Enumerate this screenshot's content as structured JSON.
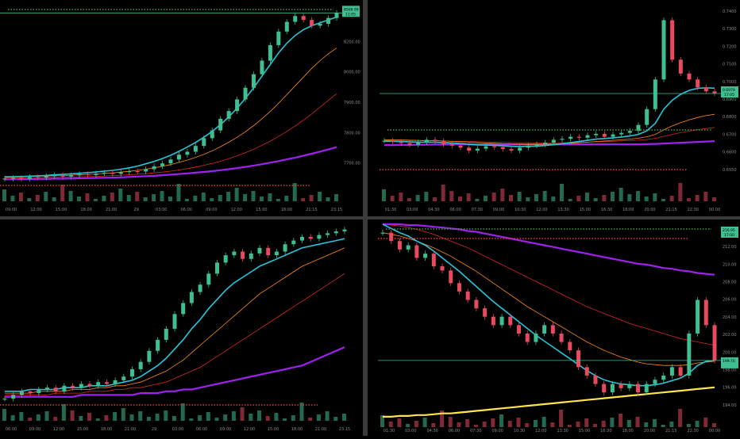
{
  "chart_data": [
    {
      "type": "candlestick",
      "panel": "top-left",
      "price_axis": [
        "8400.00",
        "8200.00",
        "8000.00",
        "7900.00",
        "7800.00",
        "7700.00"
      ],
      "price_tag": "8566.99",
      "price_tag_sub": "11:05",
      "time_axis": [
        "09:00",
        "12:00",
        "15:00",
        "18:00",
        "21:00",
        "29",
        "03:00",
        "06:00",
        "09:00",
        "12:00",
        "15:00",
        "18:00",
        "21:15",
        "23:15"
      ],
      "ylim": [
        7660,
        8600
      ],
      "trend_close": [
        7712,
        7715,
        7710,
        7720,
        7716,
        7724,
        7730,
        7722,
        7728,
        7735,
        7730,
        7738,
        7742,
        7736,
        7745,
        7750,
        7748,
        7760,
        7775,
        7790,
        7810,
        7835,
        7850,
        7880,
        7920,
        7960,
        8020,
        8060,
        8120,
        8180,
        8250,
        8320,
        8400,
        8470,
        8520,
        8550,
        8530,
        8500,
        8510,
        8540,
        8566
      ],
      "ma_fast": [
        7720,
        7721,
        7722,
        7724,
        7726,
        7728,
        7731,
        7733,
        7736,
        7739,
        7742,
        7746,
        7750,
        7754,
        7760,
        7767,
        7776,
        7788,
        7800,
        7815,
        7832,
        7852,
        7874,
        7898,
        7925,
        7955,
        7990,
        8030,
        8075,
        8125,
        8180,
        8240,
        8300,
        8360,
        8410,
        8450,
        8480,
        8500,
        8515,
        8530,
        8545
      ],
      "ma_mid": [
        7722,
        7722,
        7722,
        7723,
        7724,
        7725,
        7726,
        7727,
        7729,
        7731,
        7733,
        7735,
        7738,
        7741,
        7745,
        7749,
        7754,
        7760,
        7767,
        7775,
        7784,
        7795,
        7807,
        7821,
        7837,
        7855,
        7876,
        7899,
        7925,
        7953,
        7985,
        8020,
        8058,
        8100,
        8145,
        8190,
        8235,
        8280,
        8320,
        8355,
        8385
      ],
      "ma_slow": [
        7716,
        7716,
        7716,
        7717,
        7717,
        7718,
        7718,
        7719,
        7720,
        7721,
        7722,
        7723,
        7725,
        7727,
        7729,
        7731,
        7734,
        7737,
        7741,
        7745,
        7750,
        7756,
        7763,
        7771,
        7780,
        7790,
        7801,
        7814,
        7829,
        7845,
        7863,
        7883,
        7905,
        7929,
        7955,
        7983,
        8013,
        8045,
        8080,
        8115,
        8150
      ],
      "ma_long": [
        7708,
        7708,
        7709,
        7709,
        7710,
        7710,
        7711,
        7711,
        7712,
        7713,
        7714,
        7715,
        7716,
        7717,
        7718,
        7720,
        7722,
        7724,
        7726,
        7729,
        7732,
        7735,
        7738,
        7742,
        7746,
        7750,
        7755,
        7760,
        7766,
        7772,
        7779,
        7786,
        7794,
        7802,
        7811,
        7820,
        7830,
        7840,
        7851,
        7862,
        7874
      ]
    },
    {
      "type": "candlestick",
      "panel": "top-right",
      "price_axis": [
        "0.7400",
        "0.7300",
        "0.7200",
        "0.7100",
        "0.7000",
        "0.6900",
        "0.6800",
        "0.6700",
        "0.6600",
        "0.6550"
      ],
      "price_tag": "0.6979",
      "price_tag_sub": "17:05",
      "time_axis": [
        "01:30",
        "03:00",
        "04:30",
        "06:00",
        "07:30",
        "09:00",
        "10:30",
        "12:00",
        "13:30",
        "15:00",
        "16:30",
        "18:00",
        "20:00",
        "21:15",
        "22:30",
        "00:00"
      ],
      "ylim": [
        0.653,
        0.742
      ],
      "trend_close": [
        0.674,
        0.6735,
        0.6728,
        0.672,
        0.6732,
        0.6745,
        0.6738,
        0.6722,
        0.6715,
        0.6705,
        0.669,
        0.67,
        0.6712,
        0.6708,
        0.6698,
        0.669,
        0.6705,
        0.6715,
        0.6722,
        0.673,
        0.6745,
        0.675,
        0.676,
        0.6755,
        0.6768,
        0.6775,
        0.676,
        0.6772,
        0.678,
        0.679,
        0.682,
        0.69,
        0.705,
        0.735,
        0.715,
        0.708,
        0.705,
        0.701,
        0.699,
        0.6979
      ],
      "ma_fast": [
        0.6738,
        0.6737,
        0.6736,
        0.6734,
        0.6733,
        0.6733,
        0.6733,
        0.6731,
        0.6729,
        0.6726,
        0.6722,
        0.6719,
        0.6718,
        0.6717,
        0.6715,
        0.6712,
        0.6711,
        0.6712,
        0.6713,
        0.6716,
        0.672,
        0.6725,
        0.6731,
        0.6736,
        0.6742,
        0.6748,
        0.6751,
        0.6755,
        0.6759,
        0.6764,
        0.6772,
        0.679,
        0.6828,
        0.69,
        0.6945,
        0.6975,
        0.6995,
        0.7005,
        0.7008,
        0.7006
      ],
      "ma_mid": [
        0.6745,
        0.6745,
        0.6744,
        0.6743,
        0.6742,
        0.6741,
        0.674,
        0.6739,
        0.6737,
        0.6735,
        0.6733,
        0.6731,
        0.6729,
        0.6727,
        0.6725,
        0.6723,
        0.6722,
        0.6721,
        0.6721,
        0.6722,
        0.6723,
        0.6725,
        0.6727,
        0.673,
        0.6733,
        0.6736,
        0.6739,
        0.6742,
        0.6745,
        0.6748,
        0.6753,
        0.676,
        0.6772,
        0.6795,
        0.6815,
        0.6832,
        0.6846,
        0.6858,
        0.6867,
        0.6874
      ],
      "ma_slow": [
        0.6742,
        0.6742,
        0.6742,
        0.6741,
        0.6741,
        0.674,
        0.674,
        0.6739,
        0.6738,
        0.6737,
        0.6736,
        0.6735,
        0.6734,
        0.6733,
        0.6732,
        0.6731,
        0.673,
        0.673,
        0.6729,
        0.6729,
        0.673,
        0.673,
        0.6731,
        0.6732,
        0.6733,
        0.6734,
        0.6736,
        0.6737,
        0.6739,
        0.6741,
        0.6743,
        0.6746,
        0.6752,
        0.6762,
        0.6772,
        0.6781,
        0.6789,
        0.6796,
        0.6802,
        0.6807
      ],
      "ma_long": [
        0.6718,
        0.6718,
        0.6719,
        0.6719,
        0.672,
        0.672,
        0.6721,
        0.6721,
        0.6722,
        0.6722,
        0.6722,
        0.6722,
        0.6722,
        0.6722,
        0.6722,
        0.6722,
        0.6722,
        0.6722,
        0.6722,
        0.6722,
        0.6722,
        0.6722,
        0.6722,
        0.6722,
        0.6722,
        0.6722,
        0.6722,
        0.6722,
        0.6722,
        0.6722,
        0.6722,
        0.6723,
        0.6724,
        0.6726,
        0.6728,
        0.673,
        0.6732,
        0.6734,
        0.6736,
        0.6738
      ]
    },
    {
      "type": "candlestick",
      "panel": "bottom-left",
      "price_tag": "",
      "time_axis": [
        "06:00",
        "09:00",
        "12:00",
        "15:00",
        "18:00",
        "21:00",
        "29",
        "03:00",
        "06:00",
        "09:00",
        "12:00",
        "15:00",
        "18:00",
        "21:00",
        "23:15"
      ],
      "ylim": [
        0,
        100
      ],
      "trend_close": [
        6,
        8,
        10,
        9,
        11,
        12,
        10,
        13,
        12,
        14,
        13,
        15,
        14,
        16,
        18,
        22,
        26,
        32,
        38,
        44,
        52,
        58,
        64,
        68,
        74,
        80,
        84,
        86,
        82,
        85,
        88,
        84,
        86,
        90,
        92,
        94,
        93,
        95,
        96,
        97,
        98
      ],
      "ma_fast": [
        10,
        10,
        10,
        11,
        11,
        11,
        11,
        12,
        12,
        12,
        13,
        13,
        13,
        14,
        15,
        16,
        18,
        21,
        24,
        28,
        33,
        38,
        44,
        49,
        55,
        60,
        65,
        69,
        72,
        75,
        78,
        80,
        82,
        84,
        86,
        88,
        89,
        90,
        91,
        92,
        93
      ],
      "ma_mid": [
        9,
        9,
        9,
        9,
        10,
        10,
        10,
        10,
        11,
        11,
        11,
        12,
        12,
        13,
        13,
        14,
        15,
        17,
        19,
        21,
        24,
        27,
        31,
        35,
        39,
        43,
        47,
        51,
        55,
        59,
        63,
        66,
        69,
        72,
        75,
        78,
        80,
        82,
        84,
        86,
        88
      ],
      "ma_slow": [
        8,
        8,
        8,
        8,
        8,
        8,
        9,
        9,
        9,
        9,
        10,
        10,
        10,
        11,
        11,
        12,
        12,
        13,
        14,
        15,
        17,
        19,
        21,
        23,
        26,
        29,
        32,
        35,
        38,
        41,
        44,
        47,
        50,
        53,
        56,
        59,
        62,
        65,
        68,
        71,
        74
      ],
      "ma_long": [
        7,
        7,
        7,
        7,
        7,
        7,
        7,
        7,
        7,
        8,
        8,
        8,
        8,
        8,
        8,
        8,
        9,
        9,
        9,
        10,
        10,
        11,
        11,
        12,
        13,
        14,
        15,
        16,
        17,
        18,
        19,
        20,
        21,
        22,
        23,
        24,
        26,
        28,
        30,
        32,
        34
      ]
    },
    {
      "type": "candlestick",
      "panel": "bottom-right",
      "price_axis": [
        "214.00",
        "212.00",
        "210.00",
        "208.00",
        "206.00",
        "204.00",
        "202.00",
        "200.00",
        "198.00",
        "196.00",
        "194.00"
      ],
      "price_tag": "216.95",
      "price_tag_sub": "17:00",
      "price_tag_2": "199.76",
      "time_axis": [
        "01:30",
        "03:00",
        "04:30",
        "06:00",
        "07:30",
        "09:00",
        "10:30",
        "12:00",
        "13:30",
        "15:00",
        "16:30",
        "18:00",
        "20:00",
        "21:15",
        "22:30",
        "00:00"
      ],
      "ylim": [
        193,
        216
      ],
      "trend_close": [
        215,
        214,
        213,
        213.5,
        212,
        212.5,
        211,
        210.5,
        209,
        208,
        207,
        206,
        205,
        204,
        205,
        204,
        203,
        202,
        203,
        204,
        203,
        202,
        201,
        199,
        198,
        197,
        196,
        197,
        196.5,
        197,
        196,
        197,
        197.5,
        198,
        199,
        198,
        203,
        207,
        204,
        199.8
      ],
      "ma_fast": [
        216,
        215.5,
        215,
        214.6,
        214,
        213.5,
        212.8,
        212,
        211.2,
        210.4,
        209.5,
        208.6,
        207.7,
        206.8,
        206,
        205.2,
        204.4,
        203.6,
        202.8,
        202.1,
        201.4,
        200.7,
        200,
        199.3,
        198.6,
        198,
        197.5,
        197.2,
        197,
        196.9,
        196.8,
        196.8,
        196.9,
        197.1,
        197.4,
        197.7,
        198.3,
        199.2,
        199.7,
        199.8
      ],
      "ma_mid": [
        215,
        214.8,
        214.6,
        214.3,
        214,
        213.6,
        213.2,
        212.7,
        212.2,
        211.6,
        211,
        210.4,
        209.7,
        209,
        208.3,
        207.6,
        206.9,
        206.2,
        205.6,
        205,
        204.4,
        203.8,
        203.2,
        202.6,
        202,
        201.5,
        201,
        200.6,
        200.2,
        199.9,
        199.6,
        199.4,
        199.3,
        199.2,
        199.2,
        199.2,
        199.3,
        199.5,
        199.6,
        199.7
      ],
      "ma_slow": [
        216,
        215.9,
        215.8,
        215.6,
        215.4,
        215.1,
        214.8,
        214.4,
        214,
        213.6,
        213.2,
        212.7,
        212.2,
        211.7,
        211.2,
        210.7,
        210.2,
        209.7,
        209.2,
        208.7,
        208.2,
        207.7,
        207.2,
        206.7,
        206.2,
        205.8,
        205.4,
        205,
        204.6,
        204.2,
        203.9,
        203.6,
        203.3,
        203,
        202.7,
        202.4,
        202.2,
        202,
        201.8,
        201.6
      ],
      "ma_long": [
        216,
        216,
        216,
        215.9,
        215.9,
        215.8,
        215.7,
        215.6,
        215.5,
        215.4,
        215.2,
        215.1,
        214.9,
        214.7,
        214.5,
        214.3,
        214.1,
        213.9,
        213.7,
        213.5,
        213.3,
        213.1,
        212.9,
        212.7,
        212.5,
        212.3,
        212.1,
        211.9,
        211.7,
        211.5,
        211.3,
        211.2,
        211,
        210.8,
        210.7,
        210.5,
        210.4,
        210.2,
        210.1,
        210
      ],
      "ma_yellow": [
        193.1,
        193.1,
        193.2,
        193.2,
        193.3,
        193.3,
        193.4,
        193.5,
        193.5,
        193.6,
        193.7,
        193.8,
        193.9,
        194,
        194.1,
        194.2,
        194.3,
        194.4,
        194.5,
        194.6,
        194.7,
        194.8,
        194.9,
        195,
        195.1,
        195.2,
        195.3,
        195.4,
        195.5,
        195.6,
        195.7,
        195.8,
        195.9,
        196,
        196.1,
        196.2,
        196.3,
        196.4,
        196.5,
        196.6
      ]
    }
  ],
  "colors": {
    "up": "#3fbf8f",
    "down": "#e84a5f",
    "ma_fast": "#26c6da",
    "ma_mid": "#ff8c1a",
    "ma_slow": "#d9291f",
    "ma_long": "#a020f0",
    "ma_yellow": "#ffe44d",
    "level_line": "#3fbf8f",
    "dotted_red": "#e53935",
    "dotted_green": "#43a047",
    "axis_text": "#8a8a8a",
    "tag_bg": "#3fbf8f"
  }
}
